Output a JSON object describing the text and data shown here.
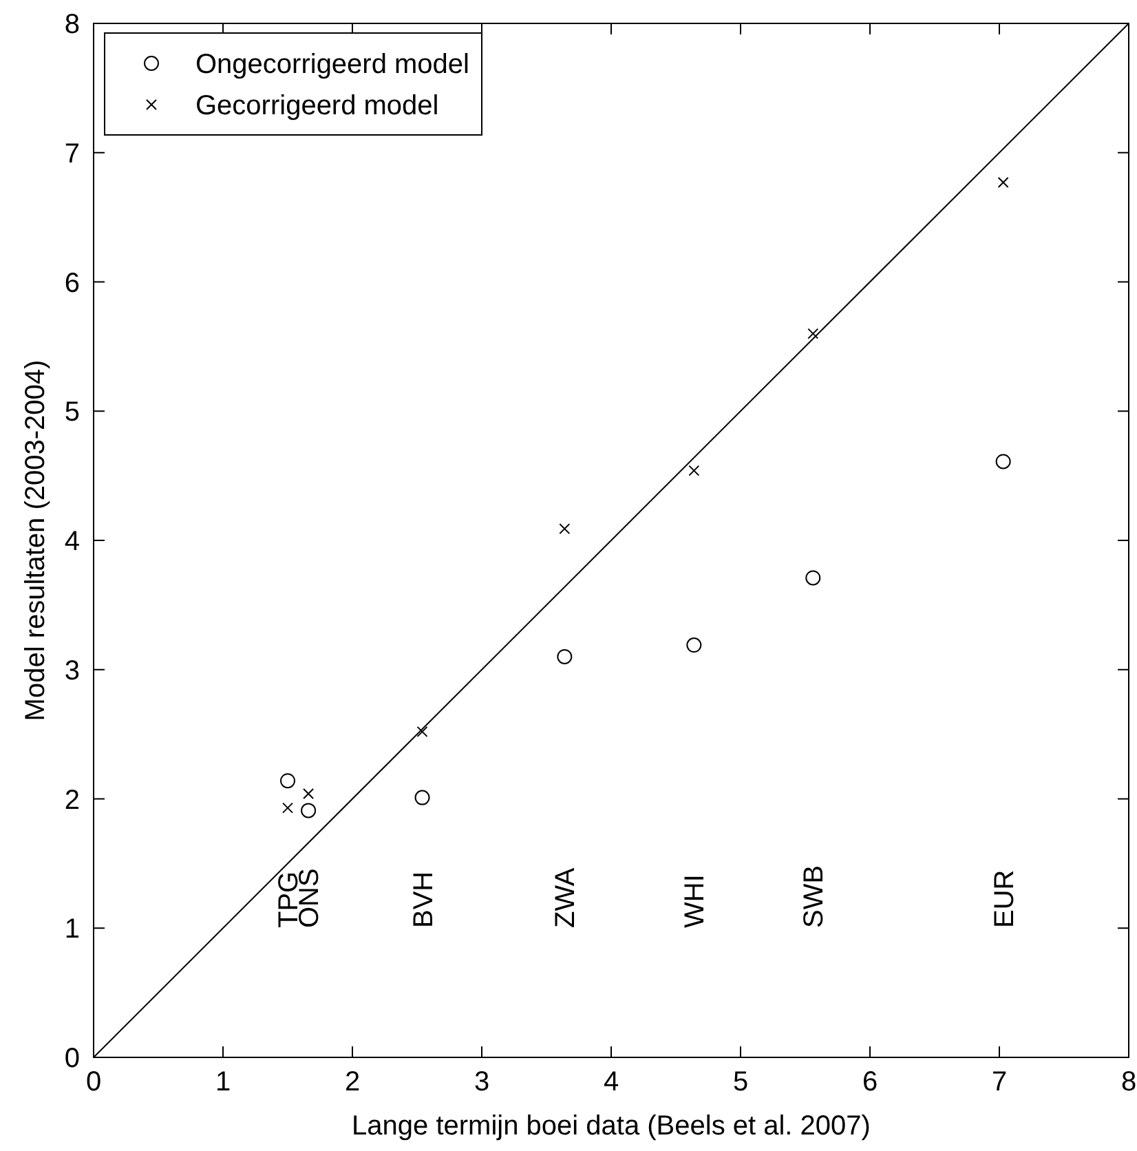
{
  "chart_data": {
    "type": "scatter",
    "xlabel": "Lange termijn boei data (Beels et al. 2007)",
    "ylabel": "Model resultaten (2003-2004)",
    "xlim": [
      0,
      8
    ],
    "ylim": [
      0,
      8
    ],
    "xticks": [
      0,
      1,
      2,
      3,
      4,
      5,
      6,
      7,
      8
    ],
    "yticks": [
      0,
      1,
      2,
      3,
      4,
      5,
      6,
      7,
      8
    ],
    "legend": "top left",
    "grid": false,
    "series": [
      {
        "name": "Ongecorrigeerd model",
        "color": "#000000",
        "marker": "circle",
        "x": [
          1.5,
          1.66,
          2.54,
          3.64,
          4.64,
          5.56,
          7.03
        ],
        "values": [
          2.14,
          1.91,
          2.01,
          3.1,
          3.19,
          3.71,
          4.61
        ]
      },
      {
        "name": "Gecorrigeerd model",
        "color": "#000000",
        "marker": "cross",
        "x": [
          1.5,
          1.66,
          2.54,
          3.64,
          4.64,
          5.56,
          7.03
        ],
        "values": [
          1.93,
          2.04,
          2.52,
          4.09,
          4.54,
          5.6,
          6.77
        ]
      },
      {
        "type": "line",
        "color": "#000000",
        "marker": "none",
        "x": [
          0,
          8
        ],
        "values": [
          0,
          8
        ]
      }
    ],
    "annotations": [
      "TPG",
      "ONS",
      "BVH",
      "ZWA",
      "WHI",
      "SWB",
      "EUR"
    ]
  }
}
